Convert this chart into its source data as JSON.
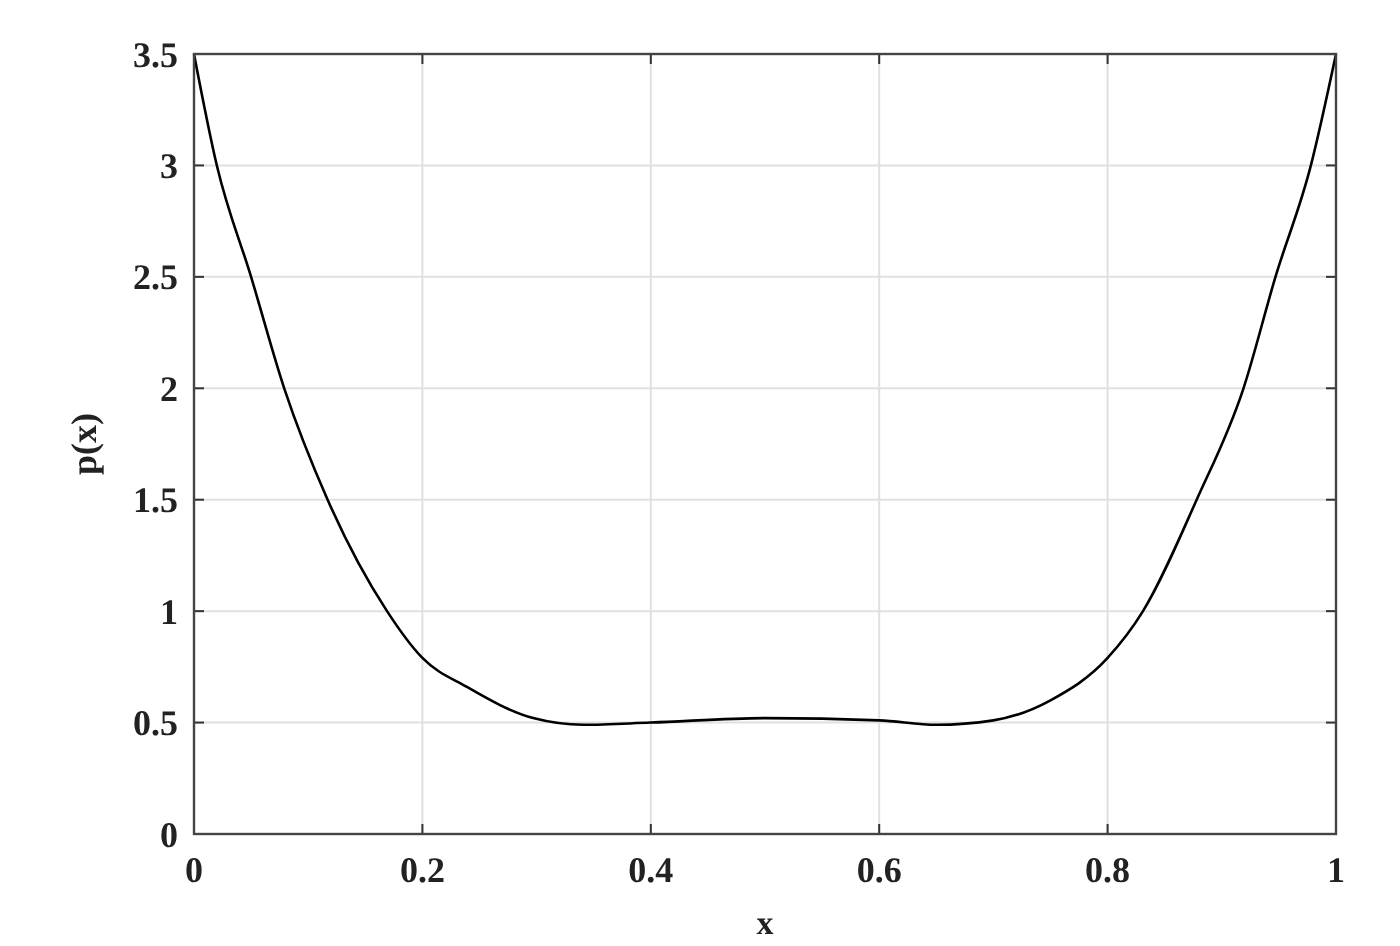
{
  "chart_data": {
    "type": "line",
    "xlabel": "x",
    "ylabel": "p(x)",
    "xlim": [
      0,
      1
    ],
    "ylim": [
      0,
      3.5
    ],
    "xticks": [
      0,
      0.2,
      0.4,
      0.6,
      0.8,
      1
    ],
    "yticks": [
      0,
      0.5,
      1,
      1.5,
      2,
      2.5,
      3,
      3.5
    ],
    "grid": true,
    "series": [
      {
        "color": "#000000",
        "x": [
          0,
          0.02,
          0.05,
          0.079,
          0.117,
          0.169,
          0.2,
          0.239,
          0.297,
          0.341,
          0.4,
          0.5,
          0.6,
          0.65,
          0.7,
          0.75,
          0.8,
          0.831,
          0.878,
          0.919,
          0.947,
          0.978,
          1
        ],
        "values": [
          3.5,
          3,
          2.5,
          2,
          1.5,
          1,
          0.79,
          0.66,
          0.52,
          0.49,
          0.5,
          0.52,
          0.51,
          0.49,
          0.51,
          0.6,
          0.79,
          1,
          1.5,
          2,
          2.5,
          3,
          3.5
        ]
      }
    ]
  }
}
